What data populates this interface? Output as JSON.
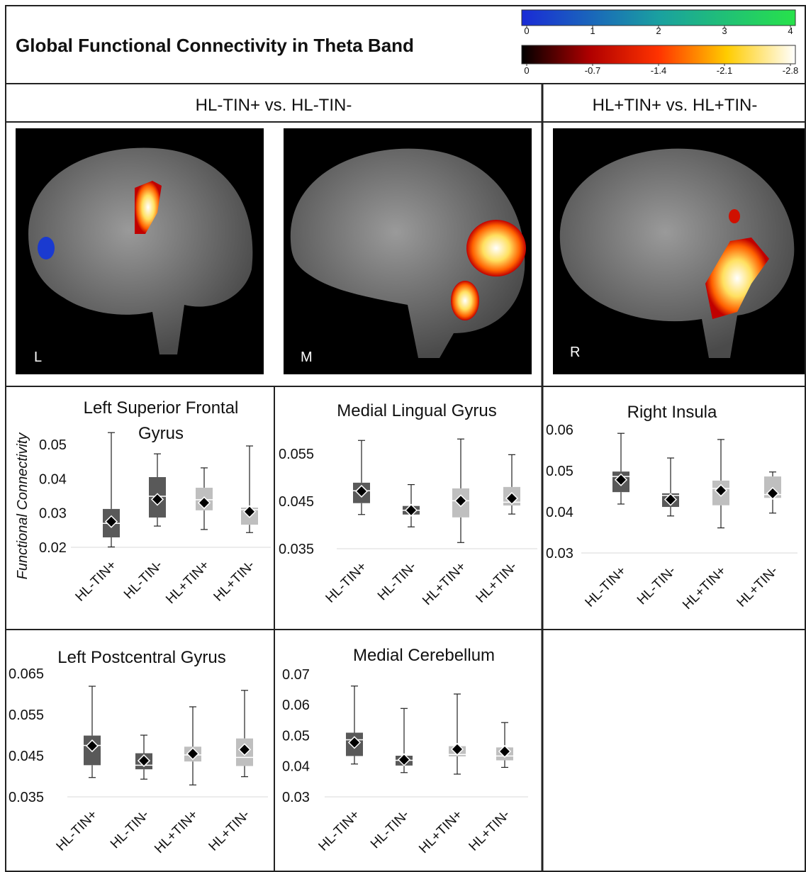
{
  "header": {
    "title": "Global Functional Connectivity in Theta Band"
  },
  "colorbars": [
    {
      "colors": [
        "#1a2bd6",
        "#1aa0a0",
        "#27e24a"
      ],
      "ticks": [
        0,
        1,
        2,
        3,
        4
      ]
    },
    {
      "colors": [
        "#000000",
        "#b00000",
        "#ff3300",
        "#ffcc00",
        "#ffffff"
      ],
      "ticks": [
        0,
        -0.7,
        -1.4,
        -2.1,
        -2.8
      ]
    }
  ],
  "columns": [
    "HL-TIN+ vs. HL-TIN-",
    "HL+TIN+ vs. HL+TIN-"
  ],
  "brain_views": [
    "L",
    "M",
    "R"
  ],
  "chart_data": [
    {
      "type": "box",
      "title": "Left Superior Frontal Gyrus",
      "ylabel": "Functional Connectivity",
      "categories": [
        "HL-TIN+",
        "HL-TIN-",
        "HL+TIN+",
        "HL+TIN-"
      ],
      "colors": [
        "#595959",
        "#595959",
        "#bfbfbf",
        "#bfbfbf"
      ],
      "whisker_low": [
        0.0201,
        0.0262,
        0.0252,
        0.0243
      ],
      "q1": [
        0.0229,
        0.0287,
        0.0308,
        0.0266
      ],
      "median": [
        0.027,
        0.0349,
        0.0339,
        0.031
      ],
      "q3": [
        0.0312,
        0.0405,
        0.0374,
        0.0316
      ],
      "whisker_high": [
        0.0535,
        0.0473,
        0.0432,
        0.0496
      ],
      "mean": [
        0.0275,
        0.034,
        0.033,
        0.0304
      ],
      "ylim": [
        0.02,
        0.055
      ],
      "yticks": [
        0.02,
        0.03,
        0.04,
        0.05
      ]
    },
    {
      "type": "box",
      "title": "Medial Lingual Gyrus",
      "categories": [
        "HL-TIN+",
        "HL-TIN-",
        "HL+TIN+",
        "HL+TIN-"
      ],
      "colors": [
        "#595959",
        "#595959",
        "#bfbfbf",
        "#bfbfbf"
      ],
      "whisker_low": [
        0.0422,
        0.0396,
        0.0363,
        0.0423
      ],
      "q1": [
        0.0446,
        0.0422,
        0.0416,
        0.0441
      ],
      "median": [
        0.0472,
        0.0431,
        0.0451,
        0.0448
      ],
      "q3": [
        0.0489,
        0.044,
        0.0477,
        0.048
      ],
      "whisker_high": [
        0.0578,
        0.0485,
        0.0581,
        0.0548
      ],
      "mean": [
        0.0471,
        0.0431,
        0.0451,
        0.0456
      ],
      "ylim": [
        0.035,
        0.06
      ],
      "yticks": [
        0.035,
        0.045,
        0.055
      ]
    },
    {
      "type": "box",
      "title": "Right Insula",
      "categories": [
        "HL-TIN+",
        "HL-TIN-",
        "HL+TIN+",
        "HL+TIN-"
      ],
      "colors": [
        "#595959",
        "#595959",
        "#bfbfbf",
        "#bfbfbf"
      ],
      "whisker_low": [
        0.0419,
        0.039,
        0.0361,
        0.0397
      ],
      "q1": [
        0.0448,
        0.0412,
        0.0416,
        0.0434
      ],
      "median": [
        0.0486,
        0.044,
        0.0457,
        0.0442
      ],
      "q3": [
        0.0498,
        0.0445,
        0.0476,
        0.0486
      ],
      "whisker_high": [
        0.0591,
        0.0531,
        0.0576,
        0.0497
      ],
      "mean": [
        0.0478,
        0.043,
        0.0452,
        0.0445
      ],
      "ylim": [
        0.03,
        0.06
      ],
      "yticks": [
        0.03,
        0.04,
        0.05,
        0.06
      ]
    },
    {
      "type": "box",
      "title": "Left Postcentral Gyrus",
      "categories": [
        "HL-TIN+",
        "HL-TIN-",
        "HL+TIN+",
        "HL+TIN-"
      ],
      "colors": [
        "#595959",
        "#595959",
        "#bfbfbf",
        "#bfbfbf"
      ],
      "whisker_low": [
        0.0397,
        0.0393,
        0.0379,
        0.0399
      ],
      "q1": [
        0.0427,
        0.0417,
        0.0436,
        0.0425
      ],
      "median": [
        0.0475,
        0.0427,
        0.0452,
        0.0446
      ],
      "q3": [
        0.0499,
        0.0456,
        0.0472,
        0.0492
      ],
      "whisker_high": [
        0.0619,
        0.05,
        0.0569,
        0.0609
      ],
      "mean": [
        0.0474,
        0.0438,
        0.0455,
        0.0465
      ],
      "ylim": [
        0.035,
        0.065
      ],
      "yticks": [
        0.035,
        0.045,
        0.055,
        0.065
      ]
    },
    {
      "type": "box",
      "title": "Medial Cerebellum",
      "categories": [
        "HL-TIN+",
        "HL-TIN-",
        "HL+TIN+",
        "HL+TIN-"
      ],
      "colors": [
        "#595959",
        "#595959",
        "#bfbfbf",
        "#bfbfbf"
      ],
      "whisker_low": [
        0.0407,
        0.0379,
        0.0374,
        0.0396
      ],
      "q1": [
        0.0433,
        0.0402,
        0.0432,
        0.0419
      ],
      "median": [
        0.0486,
        0.0419,
        0.0438,
        0.0433
      ],
      "q3": [
        0.0509,
        0.0434,
        0.0465,
        0.0461
      ],
      "whisker_high": [
        0.0661,
        0.0588,
        0.0635,
        0.0542
      ],
      "mean": [
        0.0477,
        0.0421,
        0.0455,
        0.0448
      ],
      "ylim": [
        0.03,
        0.07
      ],
      "yticks": [
        0.03,
        0.04,
        0.05,
        0.06,
        0.07
      ]
    }
  ]
}
